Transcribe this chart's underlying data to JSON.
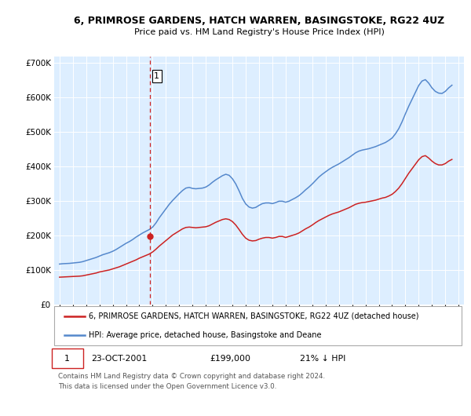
{
  "title_line1": "6, PRIMROSE GARDENS, HATCH WARREN, BASINGSTOKE, RG22 4UZ",
  "title_line2": "Price paid vs. HM Land Registry's House Price Index (HPI)",
  "legend_label1": "6, PRIMROSE GARDENS, HATCH WARREN, BASINGSTOKE, RG22 4UZ (detached house)",
  "legend_label2": "HPI: Average price, detached house, Basingstoke and Deane",
  "annotation_num": "1",
  "annotation_date": "23-OCT-2001",
  "annotation_price": "£199,000",
  "annotation_hpi": "21% ↓ HPI",
  "footer1": "Contains HM Land Registry data © Crown copyright and database right 2024.",
  "footer2": "This data is licensed under the Open Government Licence v3.0.",
  "sale_date_x": 2001.81,
  "sale_price_y": 199000,
  "vline_x": 2001.81,
  "line1_color": "#cc2222",
  "line2_color": "#5588cc",
  "vline_color": "#cc2222",
  "point_color": "#cc2222",
  "background_color": "#ffffff",
  "chart_bg_color": "#ddeeff",
  "grid_color": "#ffffff",
  "ylim": [
    0,
    720000
  ],
  "xlim_start": 1994.6,
  "xlim_end": 2025.4,
  "yticks": [
    0,
    100000,
    200000,
    300000,
    400000,
    500000,
    600000,
    700000
  ],
  "hpi_years": [
    1995.0,
    1995.25,
    1995.5,
    1995.75,
    1996.0,
    1996.25,
    1996.5,
    1996.75,
    1997.0,
    1997.25,
    1997.5,
    1997.75,
    1998.0,
    1998.25,
    1998.5,
    1998.75,
    1999.0,
    1999.25,
    1999.5,
    1999.75,
    2000.0,
    2000.25,
    2000.5,
    2000.75,
    2001.0,
    2001.25,
    2001.5,
    2001.75,
    2002.0,
    2002.25,
    2002.5,
    2002.75,
    2003.0,
    2003.25,
    2003.5,
    2003.75,
    2004.0,
    2004.25,
    2004.5,
    2004.75,
    2005.0,
    2005.25,
    2005.5,
    2005.75,
    2006.0,
    2006.25,
    2006.5,
    2006.75,
    2007.0,
    2007.25,
    2007.5,
    2007.75,
    2008.0,
    2008.25,
    2008.5,
    2008.75,
    2009.0,
    2009.25,
    2009.5,
    2009.75,
    2010.0,
    2010.25,
    2010.5,
    2010.75,
    2011.0,
    2011.25,
    2011.5,
    2011.75,
    2012.0,
    2012.25,
    2012.5,
    2012.75,
    2013.0,
    2013.25,
    2013.5,
    2013.75,
    2014.0,
    2014.25,
    2014.5,
    2014.75,
    2015.0,
    2015.25,
    2015.5,
    2015.75,
    2016.0,
    2016.25,
    2016.5,
    2016.75,
    2017.0,
    2017.25,
    2017.5,
    2017.75,
    2018.0,
    2018.25,
    2018.5,
    2018.75,
    2019.0,
    2019.25,
    2019.5,
    2019.75,
    2020.0,
    2020.25,
    2020.5,
    2020.75,
    2021.0,
    2021.25,
    2021.5,
    2021.75,
    2022.0,
    2022.25,
    2022.5,
    2022.75,
    2023.0,
    2023.25,
    2023.5,
    2023.75,
    2024.0,
    2024.25,
    2024.5
  ],
  "hpi_values": [
    118000,
    119000,
    119500,
    120000,
    121000,
    122000,
    123000,
    125000,
    128000,
    131000,
    134000,
    137000,
    141000,
    145000,
    148000,
    151000,
    155000,
    160000,
    166000,
    172000,
    178000,
    183000,
    189000,
    196000,
    202000,
    208000,
    213000,
    218000,
    225000,
    237000,
    252000,
    265000,
    278000,
    291000,
    302000,
    312000,
    322000,
    331000,
    338000,
    340000,
    337000,
    336000,
    337000,
    338000,
    341000,
    347000,
    355000,
    362000,
    368000,
    374000,
    378000,
    375000,
    365000,
    350000,
    330000,
    308000,
    292000,
    283000,
    280000,
    282000,
    288000,
    293000,
    295000,
    295000,
    293000,
    296000,
    300000,
    300000,
    297000,
    300000,
    305000,
    310000,
    316000,
    324000,
    333000,
    341000,
    350000,
    360000,
    370000,
    378000,
    385000,
    392000,
    398000,
    403000,
    408000,
    414000,
    420000,
    426000,
    433000,
    440000,
    445000,
    448000,
    450000,
    452000,
    455000,
    458000,
    462000,
    466000,
    470000,
    476000,
    483000,
    495000,
    510000,
    530000,
    553000,
    575000,
    595000,
    615000,
    635000,
    648000,
    652000,
    642000,
    628000,
    618000,
    613000,
    612000,
    618000,
    628000,
    636000
  ],
  "red_years": [
    1995.0,
    1995.25,
    1995.5,
    1995.75,
    1996.0,
    1996.25,
    1996.5,
    1996.75,
    1997.0,
    1997.25,
    1997.5,
    1997.75,
    1998.0,
    1998.25,
    1998.5,
    1998.75,
    1999.0,
    1999.25,
    1999.5,
    1999.75,
    2000.0,
    2000.25,
    2000.5,
    2000.75,
    2001.0,
    2001.25,
    2001.5,
    2001.75,
    2002.0,
    2002.25,
    2002.5,
    2002.75,
    2003.0,
    2003.25,
    2003.5,
    2003.75,
    2004.0,
    2004.25,
    2004.5,
    2004.75,
    2005.0,
    2005.25,
    2005.5,
    2005.75,
    2006.0,
    2006.25,
    2006.5,
    2006.75,
    2007.0,
    2007.25,
    2007.5,
    2007.75,
    2008.0,
    2008.25,
    2008.5,
    2008.75,
    2009.0,
    2009.25,
    2009.5,
    2009.75,
    2010.0,
    2010.25,
    2010.5,
    2010.75,
    2011.0,
    2011.25,
    2011.5,
    2011.75,
    2012.0,
    2012.25,
    2012.5,
    2012.75,
    2013.0,
    2013.25,
    2013.5,
    2013.75,
    2014.0,
    2014.25,
    2014.5,
    2014.75,
    2015.0,
    2015.25,
    2015.5,
    2015.75,
    2016.0,
    2016.25,
    2016.5,
    2016.75,
    2017.0,
    2017.25,
    2017.5,
    2017.75,
    2018.0,
    2018.25,
    2018.5,
    2018.75,
    2019.0,
    2019.25,
    2019.5,
    2019.75,
    2020.0,
    2020.25,
    2020.5,
    2020.75,
    2021.0,
    2021.25,
    2021.5,
    2021.75,
    2022.0,
    2022.25,
    2022.5,
    2022.75,
    2023.0,
    2023.25,
    2023.5,
    2023.75,
    2024.0,
    2024.25,
    2024.5
  ],
  "red_values": [
    80000,
    80500,
    81000,
    81500,
    82000,
    82500,
    83000,
    84000,
    86000,
    88000,
    90000,
    92000,
    95000,
    97000,
    99000,
    101000,
    104000,
    107000,
    110000,
    114000,
    118000,
    122000,
    126000,
    130000,
    135000,
    139000,
    143000,
    147000,
    153000,
    161000,
    170000,
    178000,
    186000,
    194000,
    202000,
    208000,
    214000,
    220000,
    224000,
    225000,
    224000,
    223000,
    224000,
    225000,
    226000,
    229000,
    234000,
    239000,
    243000,
    247000,
    249000,
    247000,
    241000,
    231000,
    218000,
    204000,
    193000,
    187000,
    185000,
    186000,
    190000,
    193000,
    195000,
    195000,
    193000,
    195000,
    198000,
    198000,
    195000,
    198000,
    201000,
    204000,
    208000,
    214000,
    220000,
    225000,
    231000,
    238000,
    244000,
    249000,
    254000,
    259000,
    263000,
    266000,
    269000,
    273000,
    277000,
    281000,
    286000,
    291000,
    294000,
    296000,
    297000,
    299000,
    301000,
    303000,
    306000,
    309000,
    311000,
    315000,
    320000,
    328000,
    338000,
    351000,
    366000,
    381000,
    394000,
    407000,
    420000,
    429000,
    432000,
    425000,
    416000,
    409000,
    405000,
    405000,
    409000,
    416000,
    421000
  ]
}
